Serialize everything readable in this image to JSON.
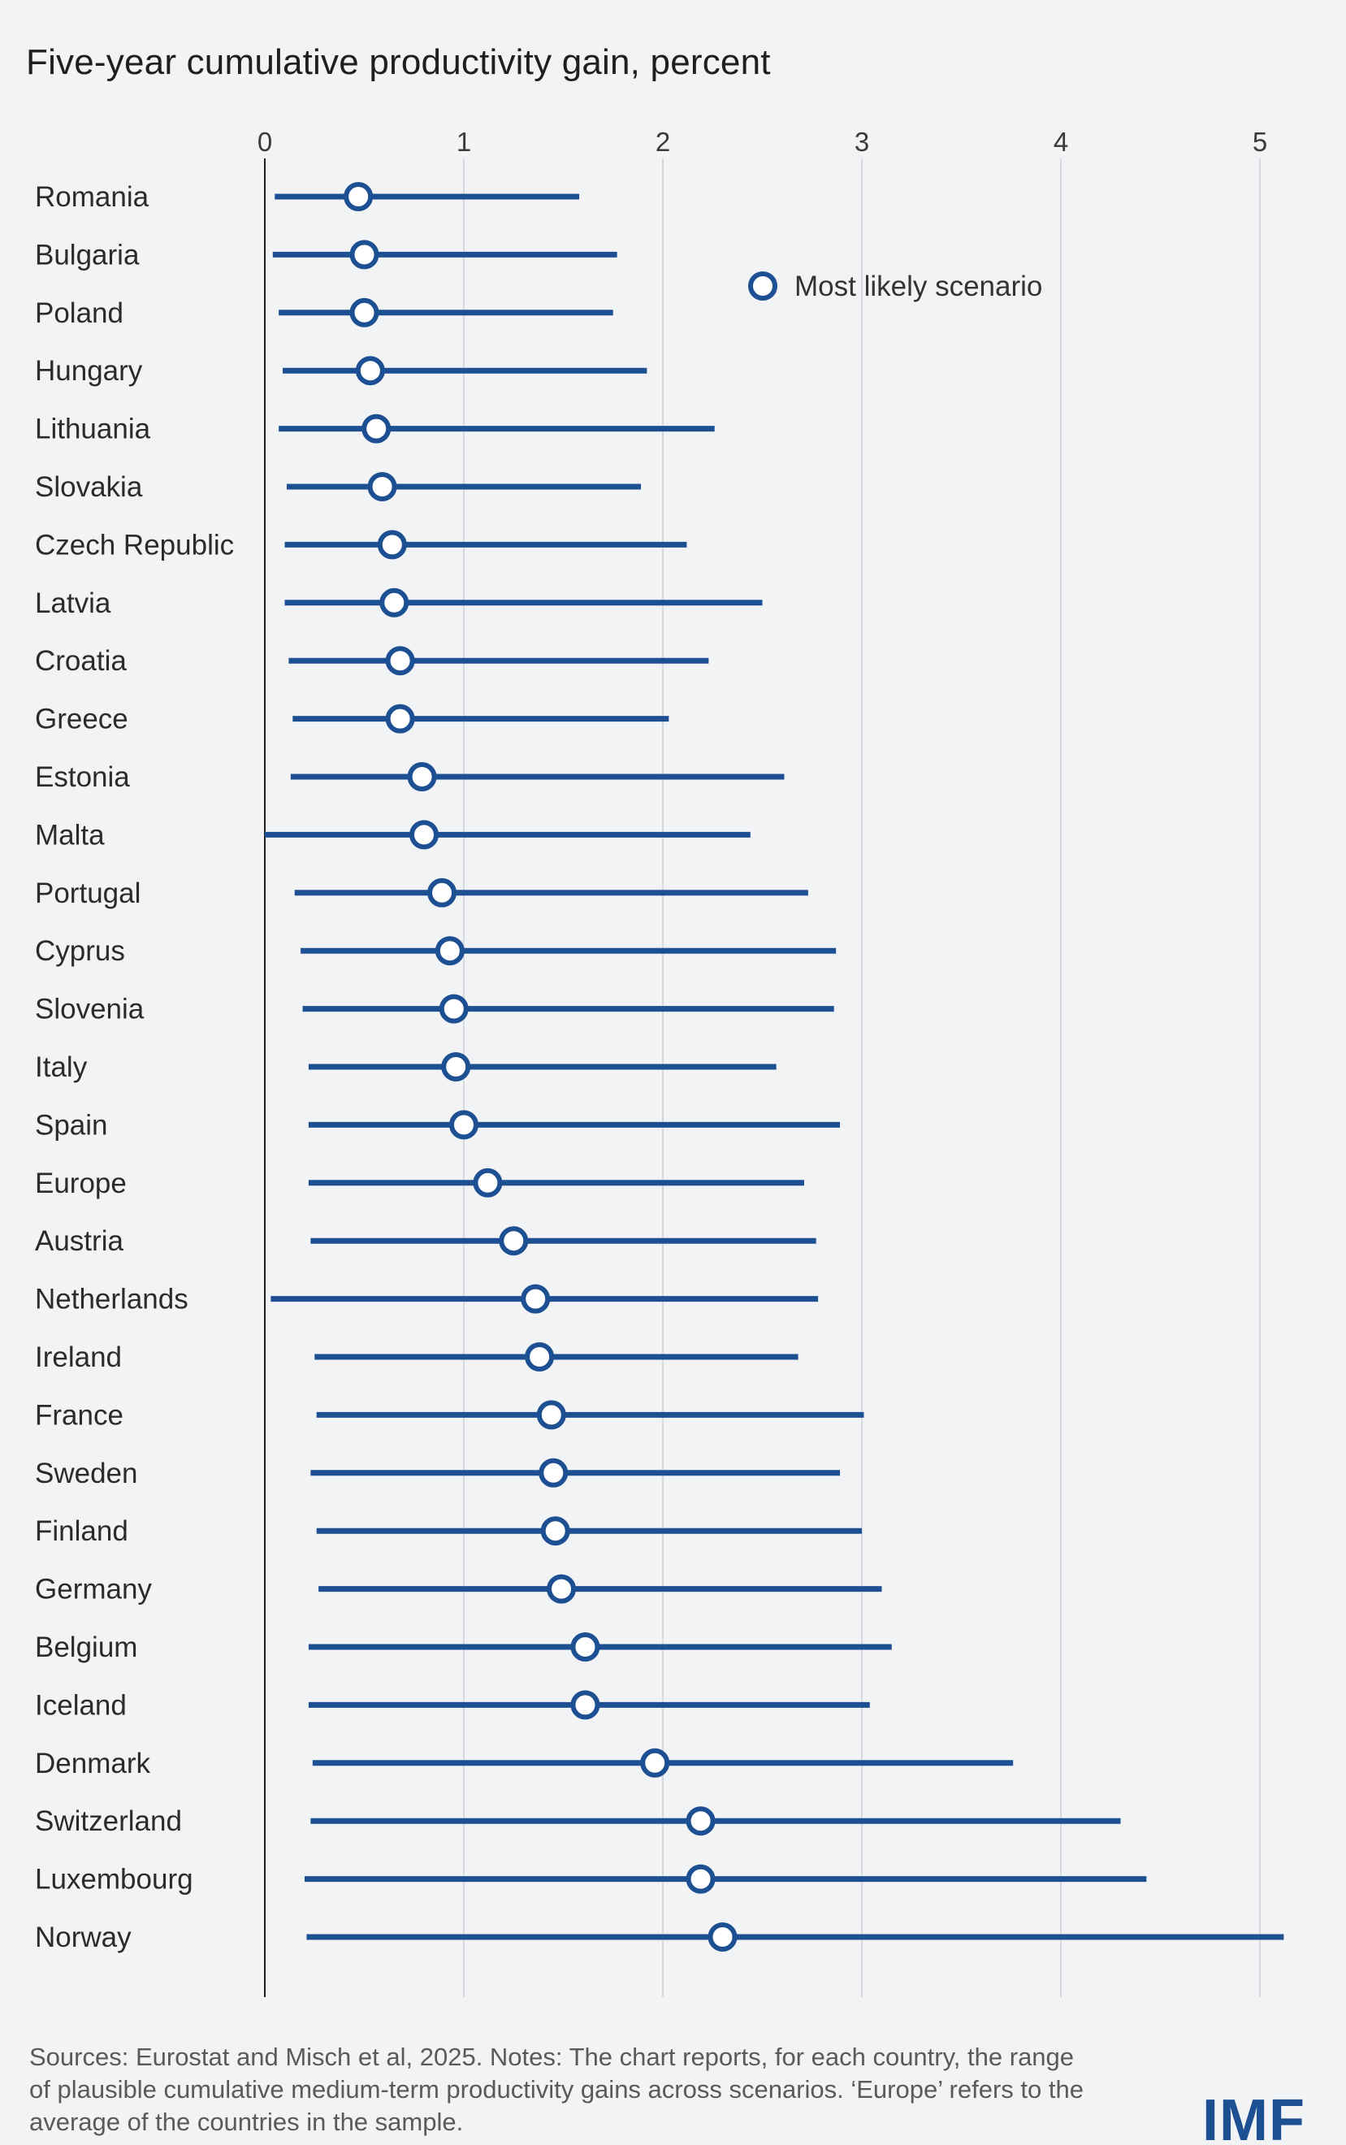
{
  "colors": {
    "series": "#1d4f93",
    "marker_fill": "#ffffff",
    "grid": "#d6d9de",
    "axis": "#1f1f1f",
    "background": "#f2f3f5"
  },
  "chart_data": {
    "type": "range_dot",
    "title": "Five-year cumulative productivity gain, percent",
    "xlabel": "",
    "ylabel": "",
    "xlim": [
      0,
      5.2
    ],
    "xticks": [
      0,
      1,
      2,
      3,
      4,
      5
    ],
    "grid": "vertical",
    "legend": {
      "position": "top-right",
      "label": "Most likely scenario"
    },
    "categories": [
      "Romania",
      "Bulgaria",
      "Poland",
      "Hungary",
      "Lithuania",
      "Slovakia",
      "Czech Republic",
      "Latvia",
      "Croatia",
      "Greece",
      "Estonia",
      "Malta",
      "Portugal",
      "Cyprus",
      "Slovenia",
      "Italy",
      "Spain",
      "Europe",
      "Austria",
      "Netherlands",
      "Ireland",
      "France",
      "Sweden",
      "Finland",
      "Germany",
      "Belgium",
      "Iceland",
      "Denmark",
      "Switzerland",
      "Luxembourg",
      "Norway"
    ],
    "series": [
      {
        "name": "Most likely scenario",
        "values": [
          0.47,
          0.5,
          0.5,
          0.53,
          0.56,
          0.59,
          0.64,
          0.65,
          0.68,
          0.68,
          0.79,
          0.8,
          0.89,
          0.93,
          0.95,
          0.96,
          1.0,
          1.12,
          1.25,
          1.36,
          1.38,
          1.44,
          1.45,
          1.46,
          1.49,
          1.61,
          1.61,
          1.96,
          2.19,
          2.19,
          2.3
        ]
      }
    ],
    "range_low": [
      0.05,
      0.04,
      0.07,
      0.09,
      0.07,
      0.11,
      0.1,
      0.1,
      0.12,
      0.14,
      0.13,
      0.0,
      0.15,
      0.18,
      0.19,
      0.22,
      0.22,
      0.22,
      0.23,
      0.03,
      0.25,
      0.26,
      0.23,
      0.26,
      0.27,
      0.22,
      0.22,
      0.24,
      0.23,
      0.2,
      0.21
    ],
    "range_high": [
      1.58,
      1.77,
      1.75,
      1.92,
      2.26,
      1.89,
      2.12,
      2.5,
      2.23,
      2.03,
      2.61,
      2.44,
      2.73,
      2.87,
      2.86,
      2.57,
      2.89,
      2.71,
      2.77,
      2.78,
      2.68,
      3.01,
      2.89,
      3.0,
      3.1,
      3.15,
      3.04,
      3.76,
      4.3,
      4.43,
      5.12
    ]
  },
  "footer": {
    "note": "Sources: Eurostat and Misch et al, 2025. Notes: The chart reports, for each country, the range of plausible cumulative medium-term productivity gains across scenarios. ‘Europe’ refers to the average of the countries in the sample.",
    "logo_text": "IMF"
  }
}
